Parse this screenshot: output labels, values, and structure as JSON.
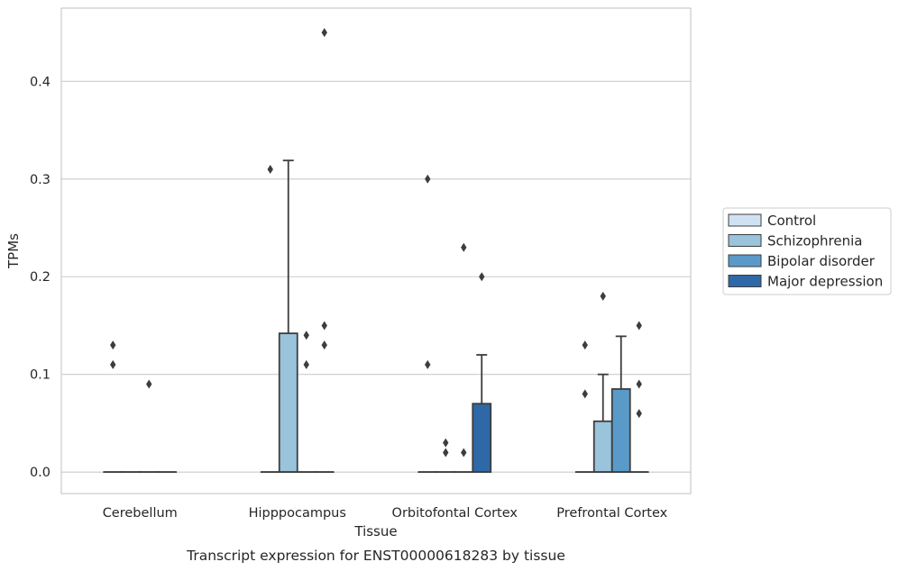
{
  "chart_data": {
    "type": "box",
    "title": "",
    "caption": "Transcript expression for ENST00000618283 by tissue",
    "xlabel": "Tissue",
    "ylabel": "TPMs",
    "ylim": [
      -0.022,
      0.475
    ],
    "yticks": [
      "0.0",
      "0.1",
      "0.2",
      "0.3",
      "0.4"
    ],
    "grid": "horizontal",
    "legend_position": "right",
    "categories": [
      "Cerebellum",
      "Hipppocampus",
      "Orbitofontal Cortex",
      "Prefrontal Cortex"
    ],
    "series": [
      {
        "name": "Control",
        "color": "#d0e2f2"
      },
      {
        "name": "Schizophrenia",
        "color": "#9ac3dc"
      },
      {
        "name": "Bipolar disorder",
        "color": "#5a9ac8"
      },
      {
        "name": "Major depression",
        "color": "#2e68a6"
      }
    ],
    "boxes": [
      {
        "category": 0,
        "series": 0,
        "q1": 0,
        "median": 0,
        "q3": 0,
        "whislo": 0,
        "whishi": 0,
        "fliers": [
          0.13,
          0.11
        ]
      },
      {
        "category": 0,
        "series": 1,
        "q1": 0,
        "median": 0,
        "q3": 0,
        "whislo": 0,
        "whishi": 0,
        "fliers": []
      },
      {
        "category": 0,
        "series": 2,
        "q1": 0,
        "median": 0,
        "q3": 0,
        "whislo": 0,
        "whishi": 0,
        "fliers": [
          0.09
        ]
      },
      {
        "category": 0,
        "series": 3,
        "q1": 0,
        "median": 0,
        "q3": 0,
        "whislo": 0,
        "whishi": 0,
        "fliers": []
      },
      {
        "category": 1,
        "series": 0,
        "q1": 0,
        "median": 0,
        "q3": 0,
        "whislo": 0,
        "whishi": 0,
        "fliers": [
          0.31
        ]
      },
      {
        "category": 1,
        "series": 1,
        "q1": 0,
        "median": 0,
        "q3": 0.142,
        "whislo": 0,
        "whishi": 0.319,
        "fliers": []
      },
      {
        "category": 1,
        "series": 2,
        "q1": 0,
        "median": 0,
        "q3": 0,
        "whislo": 0,
        "whishi": 0,
        "fliers": [
          0.14,
          0.11
        ]
      },
      {
        "category": 1,
        "series": 3,
        "q1": 0,
        "median": 0,
        "q3": 0,
        "whislo": 0,
        "whishi": 0,
        "fliers": [
          0.45,
          0.15,
          0.13
        ]
      },
      {
        "category": 2,
        "series": 0,
        "q1": 0,
        "median": 0,
        "q3": 0,
        "whislo": 0,
        "whishi": 0,
        "fliers": [
          0.3,
          0.11
        ]
      },
      {
        "category": 2,
        "series": 1,
        "q1": 0,
        "median": 0,
        "q3": 0,
        "whislo": 0,
        "whishi": 0,
        "fliers": [
          0.03,
          0.02
        ]
      },
      {
        "category": 2,
        "series": 2,
        "q1": 0,
        "median": 0,
        "q3": 0,
        "whislo": 0,
        "whishi": 0,
        "fliers": [
          0.23,
          0.02
        ]
      },
      {
        "category": 2,
        "series": 3,
        "q1": 0,
        "median": 0,
        "q3": 0.07,
        "whislo": 0,
        "whishi": 0.12,
        "fliers": [
          0.2
        ]
      },
      {
        "category": 3,
        "series": 0,
        "q1": 0,
        "median": 0,
        "q3": 0,
        "whislo": 0,
        "whishi": 0,
        "fliers": [
          0.13,
          0.08
        ]
      },
      {
        "category": 3,
        "series": 1,
        "q1": 0,
        "median": 0,
        "q3": 0.052,
        "whislo": 0,
        "whishi": 0.1,
        "fliers": [
          0.18
        ]
      },
      {
        "category": 3,
        "series": 2,
        "q1": 0,
        "median": 0,
        "q3": 0.085,
        "whislo": 0,
        "whishi": 0.139,
        "fliers": []
      },
      {
        "category": 3,
        "series": 3,
        "q1": 0,
        "median": 0,
        "q3": 0,
        "whislo": 0,
        "whishi": 0,
        "fliers": [
          0.15,
          0.09,
          0.06
        ]
      }
    ]
  }
}
